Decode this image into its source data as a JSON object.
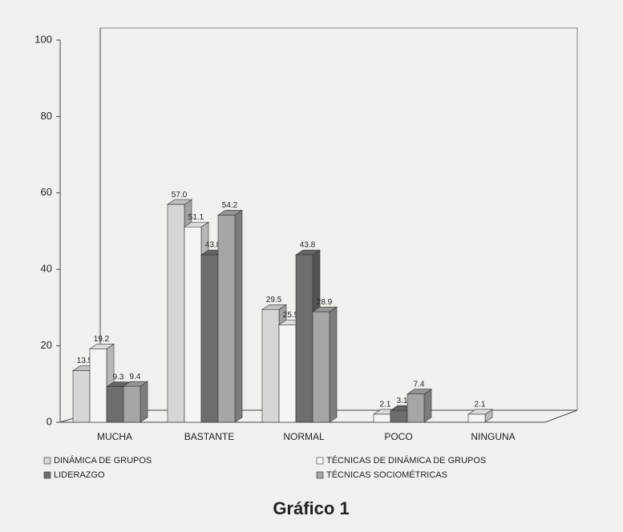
{
  "chart_data": {
    "type": "bar",
    "caption": "Gráfico 1",
    "categories": [
      "MUCHA",
      "BASTANTE",
      "NORMAL",
      "POCO",
      "NINGUNA"
    ],
    "series": [
      {
        "name": "DINÁMICA DE GRUPOS",
        "color": "#d6d6d6",
        "values": [
          13.5,
          57.0,
          29.5,
          null,
          null
        ],
        "value_labels": [
          "13.5",
          "57.0",
          "29.5",
          null,
          null
        ]
      },
      {
        "name": "TÉCNICAS DE DINÁMICA DE GRUPOS",
        "color": "#f4f4f4",
        "values": [
          19.2,
          51.1,
          25.5,
          2.1,
          2.1
        ],
        "value_labels": [
          "19.2",
          "51.1",
          "25.5",
          "2.1",
          "2.1"
        ]
      },
      {
        "name": "LIDERAZGO",
        "color": "#6e6e6e",
        "values": [
          9.3,
          43.8,
          43.8,
          3.1,
          null
        ],
        "value_labels": [
          "9.3",
          "43.8",
          "43.8",
          "3.1",
          null
        ]
      },
      {
        "name": "TÉCNICAS SOCIOMÉTRICAS",
        "color": "#a6a6a6",
        "values": [
          9.4,
          54.2,
          28.9,
          7.4,
          null
        ],
        "value_labels": [
          "9.4",
          "54.2",
          "28.9",
          "7.4",
          null
        ]
      }
    ],
    "ylim": [
      0,
      100
    ],
    "yticks": [
      0,
      20,
      40,
      60,
      80,
      100
    ],
    "grid": false
  }
}
